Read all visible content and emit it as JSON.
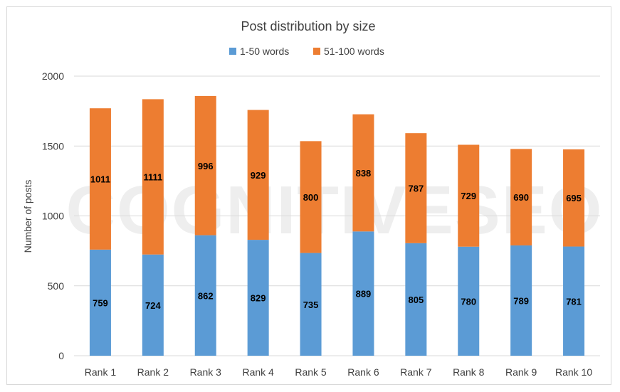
{
  "chart_data": {
    "type": "bar",
    "stacked": true,
    "title": "Post distribution by size",
    "ylabel": "Number of posts",
    "xlabel": "",
    "categories": [
      "Rank 1",
      "Rank 2",
      "Rank 3",
      "Rank 4",
      "Rank 5",
      "Rank 6",
      "Rank 7",
      "Rank 8",
      "Rank 9",
      "Rank 10"
    ],
    "series": [
      {
        "name": "1-50 words",
        "color": "#5b9bd5",
        "values": [
          759,
          724,
          862,
          829,
          735,
          889,
          805,
          780,
          789,
          781
        ]
      },
      {
        "name": "51-100 words",
        "color": "#ed7d31",
        "values": [
          1011,
          1111,
          996,
          929,
          800,
          838,
          787,
          729,
          690,
          695
        ]
      }
    ],
    "ylim": [
      0,
      2000
    ],
    "yticks": [
      0,
      500,
      1000,
      1500,
      2000
    ],
    "grid": true,
    "legend_position": "top",
    "watermark": "COGNITIVESEO"
  }
}
